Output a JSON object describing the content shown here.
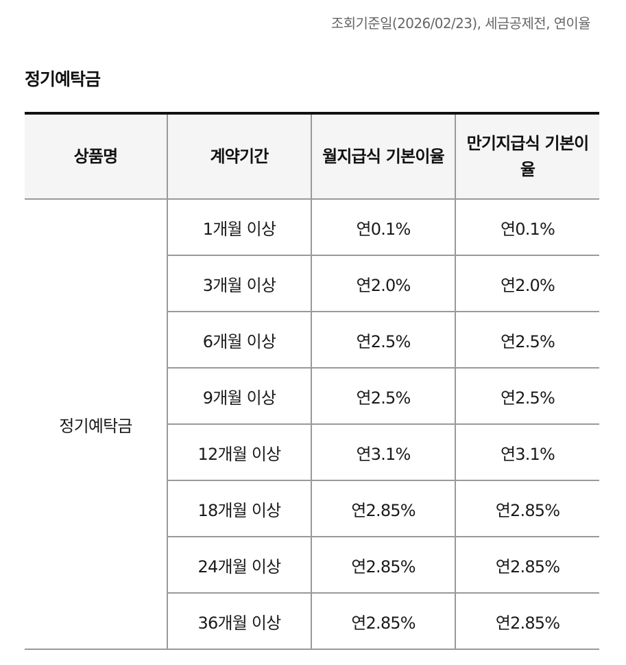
{
  "notice": "조회기준일(2026/02/23), 세금공제전, 연이율",
  "section_title": "정기예탁금",
  "table": {
    "headers": [
      "상품명",
      "계약기간",
      "월지급식 기본이율",
      "만기지급식 기본이율"
    ],
    "product_name": "정기예탁금",
    "rows": [
      {
        "period": "1개월 이상",
        "monthly": "연0.1%",
        "maturity": "연0.1%"
      },
      {
        "period": "3개월 이상",
        "monthly": "연2.0%",
        "maturity": "연2.0%"
      },
      {
        "period": "6개월 이상",
        "monthly": "연2.5%",
        "maturity": "연2.5%"
      },
      {
        "period": "9개월 이상",
        "monthly": "연2.5%",
        "maturity": "연2.5%"
      },
      {
        "period": "12개월 이상",
        "monthly": "연3.1%",
        "maturity": "연3.1%"
      },
      {
        "period": "18개월 이상",
        "monthly": "연2.85%",
        "maturity": "연2.85%"
      },
      {
        "period": "24개월 이상",
        "monthly": "연2.85%",
        "maturity": "연2.85%"
      },
      {
        "period": "36개월 이상",
        "monthly": "연2.85%",
        "maturity": "연2.85%"
      }
    ]
  }
}
